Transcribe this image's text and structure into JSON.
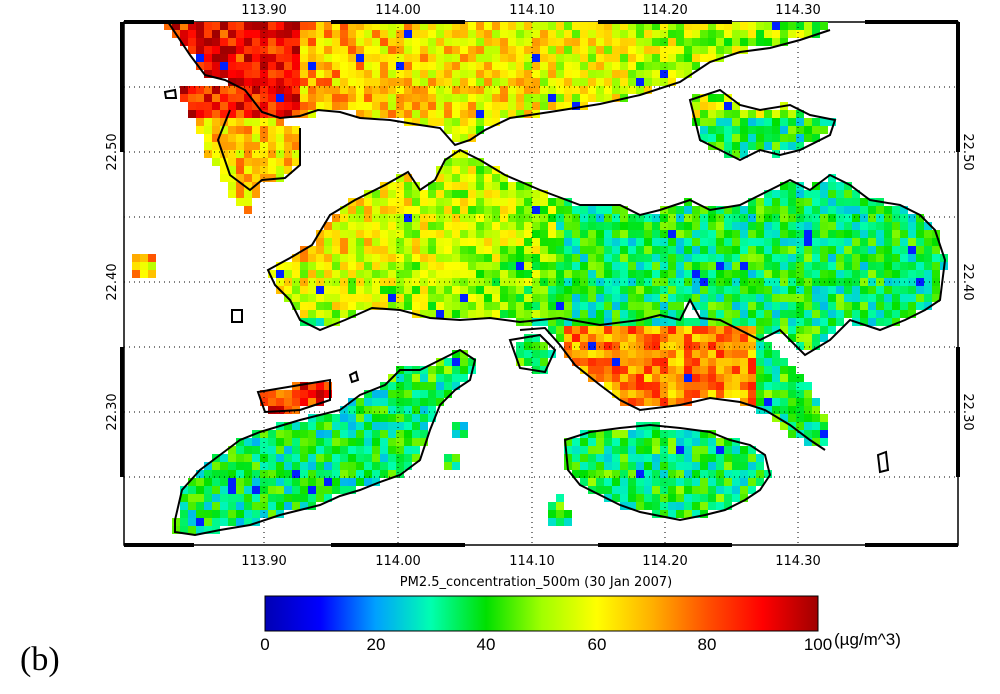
{
  "figure": {
    "panel_label": "(b)",
    "title": "PM2.5_concentration_500m (30 Jan 2007)"
  },
  "axes": {
    "longitude_ticks": [
      "113.90",
      "114.00",
      "114.10",
      "114.20",
      "114.30"
    ],
    "latitude_ticks": [
      "22.50",
      "22.40",
      "22.30"
    ]
  },
  "colorbar": {
    "ticks": [
      "0",
      "20",
      "40",
      "60",
      "80",
      "100"
    ],
    "unit": "(µg/m^3)",
    "range": [
      0,
      100
    ],
    "colors": [
      "#0000b4",
      "#0000ff",
      "#00a0ff",
      "#00ffb0",
      "#00e000",
      "#a0ff00",
      "#ffff00",
      "#ffb000",
      "#ff5000",
      "#ff0000",
      "#a00000"
    ]
  },
  "map": {
    "region": "Hong Kong",
    "lon_range": [
      113.8,
      114.42
    ],
    "lat_range": [
      22.21,
      22.6
    ],
    "coastline_color": "#000000",
    "land_color_dominant": "green-yellow (30–50)",
    "hotspot_color": "dark red (80–100)"
  }
}
